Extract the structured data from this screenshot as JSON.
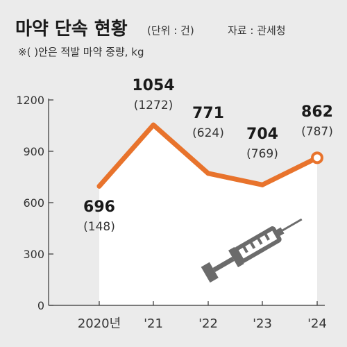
{
  "header": {
    "title": "마약 단속 현황",
    "unit": "(단위 : 건)",
    "source": "자료 : 관세청",
    "note": "※(  )안은 적발 마약 중량, kg"
  },
  "colors": {
    "line": "#e8732c",
    "area": "#ffffff",
    "background": "#ebebeb",
    "axis": "#333333",
    "syringe": "#6b6b6b"
  },
  "chart_data": {
    "type": "line",
    "categories": [
      "2020년",
      "'21",
      "'22",
      "'23",
      "'24"
    ],
    "series": [
      {
        "values": [
          696,
          1054,
          771,
          704,
          862
        ],
        "value_labels": [
          "696",
          "1054",
          "771",
          "704",
          "862"
        ],
        "secondary_labels": [
          "(148)",
          "(1272)",
          "(624)",
          "(769)",
          "(787)"
        ]
      }
    ],
    "ylim": [
      0,
      1200
    ],
    "yticks": [
      0,
      300,
      600,
      900,
      1200
    ],
    "ytick_labels": [
      "0",
      "300",
      "600",
      "900",
      "1200"
    ],
    "grid": false,
    "legend": "none",
    "icon": "syringe-icon"
  }
}
